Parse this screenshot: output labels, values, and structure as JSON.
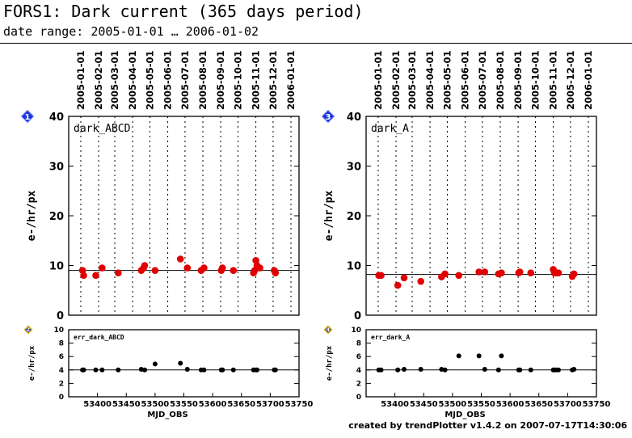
{
  "title": "FORS1: Dark current (365 days period)",
  "subtitle": "date range: 2005-01-01 … 2006-01-02",
  "footer": "created by trendPlotter v1.4.2 on 2007-07-17T14:30:06",
  "markers": {
    "main_color": "#e00000",
    "err_color": "#000000",
    "badge_color": "#1a35d6"
  },
  "chart_data": [
    {
      "type": "scatter",
      "panel_number": "1",
      "label": "dark_ABCD",
      "ylabel": "e-/hr/px",
      "ylim": [
        0,
        40
      ],
      "yticks": [
        "0",
        "10",
        "20",
        "30",
        "40"
      ],
      "xlim": [
        53350,
        53750
      ],
      "date_ticks": [
        {
          "label": "2005-01-01",
          "mjd": 53371
        },
        {
          "label": "2005-02-01",
          "mjd": 53402
        },
        {
          "label": "2005-03-01",
          "mjd": 53430
        },
        {
          "label": "2005-04-01",
          "mjd": 53461
        },
        {
          "label": "2005-05-01",
          "mjd": 53491
        },
        {
          "label": "2005-06-01",
          "mjd": 53522
        },
        {
          "label": "2005-07-01",
          "mjd": 53552
        },
        {
          "label": "2005-08-01",
          "mjd": 53583
        },
        {
          "label": "2005-09-01",
          "mjd": 53614
        },
        {
          "label": "2005-10-01",
          "mjd": 53644
        },
        {
          "label": "2005-11-01",
          "mjd": 53675
        },
        {
          "label": "2005-12-01",
          "mjd": 53705
        },
        {
          "label": "2006-01-01",
          "mjd": 53736
        }
      ],
      "reference_line": 9.0,
      "x": [
        53374,
        53376,
        53397,
        53408,
        53436,
        53476,
        53480,
        53482,
        53500,
        53544,
        53556,
        53580,
        53585,
        53615,
        53617,
        53636,
        53671,
        53673,
        53675,
        53677,
        53682,
        53707,
        53709
      ],
      "y": [
        9.0,
        8.0,
        8.0,
        9.5,
        8.5,
        9.0,
        9.5,
        10.0,
        9.0,
        11.3,
        9.5,
        9.0,
        9.5,
        9.0,
        9.5,
        9.0,
        8.5,
        9.0,
        11.0,
        10.0,
        9.5,
        9.0,
        8.5
      ]
    },
    {
      "type": "scatter",
      "panel_number": "2",
      "label": "err_dark_ABCD",
      "ylabel": "e-/hr/px",
      "ylim": [
        0,
        10
      ],
      "yticks": [
        "0",
        "2",
        "4",
        "6",
        "8",
        "10"
      ],
      "xlim": [
        53350,
        53750
      ],
      "xticks": [
        "53400",
        "53450",
        "53500",
        "53550",
        "53600",
        "53650",
        "53700",
        "53750"
      ],
      "xlabel": "MJD_OBS",
      "reference_line": 4.0,
      "x": [
        53374,
        53376,
        53397,
        53408,
        53436,
        53476,
        53482,
        53500,
        53544,
        53556,
        53580,
        53585,
        53615,
        53617,
        53636,
        53671,
        53675,
        53677,
        53707,
        53709
      ],
      "y": [
        4.0,
        4.0,
        4.0,
        4.0,
        4.0,
        4.1,
        4.0,
        4.9,
        5.0,
        4.1,
        4.0,
        4.0,
        4.0,
        4.0,
        4.0,
        4.0,
        4.0,
        4.0,
        4.0,
        4.0
      ]
    },
    {
      "type": "scatter",
      "panel_number": "3",
      "label": "dark_A",
      "ylabel": "e-/hr/px",
      "ylim": [
        0,
        40
      ],
      "yticks": [
        "0",
        "10",
        "20",
        "30",
        "40"
      ],
      "xlim": [
        53350,
        53750
      ],
      "date_ticks": [
        {
          "label": "2005-01-01",
          "mjd": 53371
        },
        {
          "label": "2005-02-01",
          "mjd": 53402
        },
        {
          "label": "2005-03-01",
          "mjd": 53430
        },
        {
          "label": "2005-04-01",
          "mjd": 53461
        },
        {
          "label": "2005-05-01",
          "mjd": 53491
        },
        {
          "label": "2005-06-01",
          "mjd": 53522
        },
        {
          "label": "2005-07-01",
          "mjd": 53552
        },
        {
          "label": "2005-08-01",
          "mjd": 53583
        },
        {
          "label": "2005-09-01",
          "mjd": 53614
        },
        {
          "label": "2005-10-01",
          "mjd": 53644
        },
        {
          "label": "2005-11-01",
          "mjd": 53675
        },
        {
          "label": "2005-12-01",
          "mjd": 53705
        },
        {
          "label": "2006-01-01",
          "mjd": 53736
        }
      ],
      "reference_line": 8.2,
      "x": [
        53372,
        53376,
        53405,
        53416,
        53445,
        53481,
        53487,
        53511,
        53546,
        53556,
        53580,
        53585,
        53615,
        53617,
        53636,
        53675,
        53677,
        53680,
        53684,
        53708,
        53711
      ],
      "y": [
        8.0,
        8.0,
        6.0,
        7.5,
        6.8,
        7.7,
        8.3,
        8.0,
        8.7,
        8.7,
        8.3,
        8.5,
        8.5,
        8.7,
        8.5,
        9.2,
        8.5,
        8.5,
        8.5,
        7.8,
        8.3
      ]
    },
    {
      "type": "scatter",
      "panel_number": "4",
      "label": "err_dark_A",
      "ylabel": "e-/hr/px",
      "ylim": [
        0,
        10
      ],
      "yticks": [
        "0",
        "2",
        "4",
        "6",
        "8",
        "10"
      ],
      "xlim": [
        53350,
        53750
      ],
      "xticks": [
        "53400",
        "53450",
        "53500",
        "53550",
        "53600",
        "53650",
        "53700",
        "53750"
      ],
      "xlabel": "MJD_OBS",
      "reference_line": 4.0,
      "x": [
        53372,
        53376,
        53405,
        53416,
        53445,
        53481,
        53487,
        53511,
        53546,
        53556,
        53580,
        53585,
        53615,
        53617,
        53636,
        53675,
        53677,
        53680,
        53684,
        53708,
        53711
      ],
      "y": [
        4.0,
        4.0,
        4.0,
        4.1,
        4.1,
        4.1,
        4.0,
        6.1,
        6.1,
        4.1,
        4.0,
        6.1,
        4.0,
        4.0,
        4.0,
        4.0,
        4.0,
        4.0,
        4.0,
        4.0,
        4.1
      ]
    }
  ]
}
